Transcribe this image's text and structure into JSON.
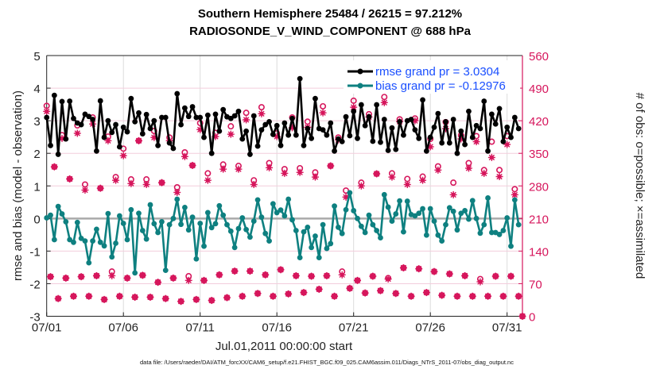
{
  "chart_data": {
    "type": "line",
    "title": [
      "Southern Hemisphere 25484 / 26215 = 97.212%",
      "RADIOSONDE_V_WIND_COMPONENT @ 688 hPa"
    ],
    "xlabel": "Jul.01,2011 00:00:00 start",
    "ylabel": "rmse and bias (model - observation)",
    "ylabel_right": "# of obs: o=possible; ×=assimilated",
    "footer": "data file: /Users/raeder/DAI/ATM_forcXX/CAM6_setup/f.e21.FHIST_BGC.f09_025.CAM6assim.011/Diags_NTrS_2011-07/obs_diag_output.nc",
    "x_start": "2011-07-01 00:00",
    "x_step_hours": 6,
    "xlim_days": [
      0,
      31
    ],
    "xticks": [
      "07/01",
      "07/06",
      "07/11",
      "07/16",
      "07/21",
      "07/26",
      "07/31"
    ],
    "ylim": [
      -3,
      5
    ],
    "yticks": [
      "-3",
      "-2",
      "-1",
      "0",
      "1",
      "2",
      "3",
      "4",
      "5"
    ],
    "ylim_right": [
      0,
      560
    ],
    "yticks_right": [
      "0",
      "70",
      "140",
      "210",
      "280",
      "350",
      "420",
      "490",
      "560"
    ],
    "grid": true,
    "legend_position": "top-right",
    "colors": {
      "rmse": "#000000",
      "bias": "#0e8080",
      "obs": "#d6165c",
      "legend_text": "#1a4fff",
      "zero_line": "#aaaaaa"
    },
    "series": [
      {
        "name": "rmse grand pr = 3.0304",
        "axis": "left",
        "marker": "filled-circle",
        "values": [
          3.1,
          2.24,
          3.78,
          1.97,
          3.59,
          2.44,
          3.6,
          3.07,
          2.93,
          2.88,
          3.2,
          3.13,
          3.04,
          2.07,
          3.61,
          2.49,
          3.0,
          2.64,
          2.88,
          2.2,
          2.8,
          2.66,
          3.68,
          2.97,
          3.24,
          2.6,
          3.19,
          2.76,
          3.0,
          2.24,
          3.1,
          3.1,
          2.32,
          2.15,
          3.83,
          2.88,
          3.39,
          3.13,
          3.43,
          3.1,
          3.1,
          2.49,
          3.17,
          2.0,
          3.2,
          2.68,
          3.34,
          3.12,
          3.07,
          3.15,
          3.29,
          2.44,
          2.68,
          1.97,
          3.15,
          2.22,
          2.72,
          2.88,
          2.97,
          2.58,
          2.85,
          2.24,
          2.93,
          2.56,
          3.07,
          2.56,
          4.29,
          2.24,
          2.76,
          2.46,
          3.68,
          2.76,
          2.72,
          2.56,
          2.93,
          2.07,
          2.44,
          2.36,
          3.12,
          2.54,
          3.29,
          2.46,
          3.49,
          2.85,
          3.12,
          2.37,
          3.49,
          2.34,
          3.04,
          2.09,
          2.78,
          2.12,
          2.97,
          2.56,
          3.0,
          3.04,
          2.72,
          2.46,
          3.64,
          2.07,
          2.49,
          2.8,
          3.22,
          2.32,
          2.97,
          2.32,
          3.04,
          2.0,
          2.68,
          2.27,
          3.29,
          2.49,
          2.85,
          2.76,
          3.6,
          2.07,
          3.2,
          2.9,
          3.37,
          2.36,
          2.8,
          2.49,
          3.1,
          2.76
        ]
      },
      {
        "name": "bias grand pr = -0.12976",
        "axis": "left",
        "marker": "filled-circle",
        "values": [
          0.02,
          0.1,
          -0.65,
          0.37,
          0.14,
          -0.1,
          -0.65,
          -0.73,
          -0.12,
          -0.61,
          -0.69,
          -1.36,
          -0.69,
          -0.33,
          -0.73,
          -0.84,
          0.15,
          -1.18,
          -0.76,
          0.08,
          -0.15,
          -0.65,
          0.27,
          -1.67,
          0.16,
          -0.37,
          -0.63,
          0.42,
          -0.16,
          -0.43,
          -0.1,
          -1.59,
          -0.19,
          0,
          0.59,
          -0.18,
          0.34,
          -0.35,
          0.04,
          -1.24,
          -0.15,
          -0.85,
          0.18,
          -0.28,
          -0.16,
          0.39,
          0.1,
          -0.19,
          -0.39,
          -0.89,
          -0.31,
          0.02,
          -0.34,
          -0.57,
          -0.08,
          0.57,
          0.04,
          -0.46,
          -0.69,
          0.45,
          0.18,
          0.26,
          0.08,
          0.59,
          -0.04,
          -0.37,
          -1.2,
          -0.41,
          -0.27,
          -0.89,
          -0.54,
          -1.2,
          -0.19,
          -0.92,
          -0.77,
          0.38,
          -0.27,
          -0.46,
          0.27,
          0.79,
          0.24,
          0,
          -0.24,
          -0.43,
          0.1,
          -0.19,
          -0.37,
          -0.59,
          0.73,
          0.35,
          -0.08,
          0.14,
          0.54,
          -0.41,
          0.53,
          0.12,
          0.08,
          0.16,
          0.3,
          -0.51,
          0.3,
          -0.08,
          -0.51,
          -0.69,
          -0.19,
          0.33,
          0.22,
          -0.35,
          0.16,
          0.24,
          -0.02,
          0.55,
          0,
          -0.45,
          -0.19,
          0.63,
          -0.43,
          -0.43,
          -0.49,
          -0.37,
          0.02,
          -0.85,
          0.57,
          -0.19
        ]
      },
      {
        "axis": "right",
        "marker": "open-circle",
        "label": "possible",
        "values": [
          452,
          85,
          321,
          38,
          389,
          82,
          295,
          43,
          410,
          85,
          283,
          43,
          427,
          87,
          275,
          36,
          386,
          96,
          299,
          43,
          360,
          82,
          294,
          41,
          377,
          88,
          294,
          41,
          398,
          73,
          287,
          38,
          384,
          82,
          277,
          32,
          352,
          86,
          324,
          36,
          415,
          77,
          307,
          34,
          394,
          89,
          326,
          40,
          408,
          97,
          323,
          43,
          437,
          97,
          292,
          49,
          449,
          89,
          329,
          43,
          393,
          100,
          316,
          48,
          427,
          87,
          318,
          51,
          418,
          86,
          309,
          58,
          451,
          87,
          323,
          43,
          384,
          96,
          270,
          60,
          463,
          77,
          287,
          50,
          434,
          86,
          306,
          55,
          471,
          82,
          307,
          49,
          423,
          104,
          295,
          43,
          425,
          102,
          300,
          51,
          381,
          96,
          322,
          45,
          417,
          91,
          287,
          43,
          389,
          87,
          329,
          43,
          387,
          80,
          314,
          43,
          375,
          86,
          314,
          43,
          387,
          86,
          273,
          43,
          0
        ]
      },
      {
        "axis": "right",
        "marker": "asterisk",
        "label": "assimilated",
        "values": [
          440,
          85,
          321,
          38,
          382,
          82,
          295,
          43,
          393,
          85,
          271,
          43,
          413,
          87,
          275,
          36,
          377,
          87,
          292,
          43,
          345,
          82,
          285,
          41,
          377,
          88,
          283,
          41,
          384,
          73,
          287,
          38,
          377,
          82,
          266,
          32,
          343,
          77,
          324,
          36,
          401,
          77,
          292,
          34,
          386,
          89,
          316,
          40,
          391,
          97,
          316,
          43,
          422,
          97,
          283,
          49,
          435,
          89,
          319,
          43,
          386,
          100,
          307,
          48,
          405,
          87,
          309,
          51,
          406,
          86,
          299,
          58,
          437,
          87,
          323,
          43,
          379,
          89,
          256,
          60,
          449,
          77,
          280,
          50,
          428,
          86,
          306,
          55,
          459,
          80,
          299,
          49,
          418,
          104,
          283,
          43,
          420,
          102,
          292,
          51,
          364,
          96,
          314,
          45,
          403,
          91,
          261,
          43,
          381,
          87,
          318,
          43,
          375,
          74,
          307,
          43,
          341,
          86,
          300,
          43,
          369,
          86,
          261,
          43,
          0
        ]
      }
    ]
  }
}
